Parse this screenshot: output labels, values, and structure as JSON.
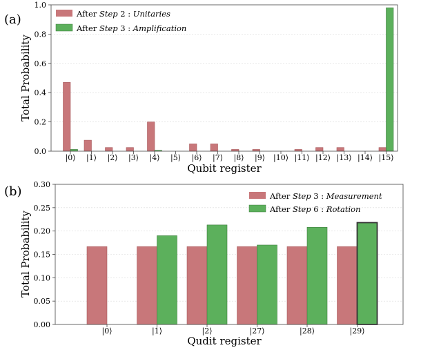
{
  "chart_data": [
    {
      "type": "bar",
      "panel_label": "(a)",
      "xlabel": "Qubit register",
      "ylabel": "Total Probability",
      "ylim": [
        0,
        1.0
      ],
      "yticks": [
        "0.0",
        "0.2",
        "0.4",
        "0.6",
        "0.8",
        "1.0"
      ],
      "ytick_values": [
        0,
        0.2,
        0.4,
        0.6,
        0.8,
        1.0
      ],
      "categories": [
        "|0⟩",
        "|1⟩",
        "|2⟩",
        "|3⟩",
        "|4⟩",
        "|5⟩",
        "|6⟩",
        "|7⟩",
        "|8⟩",
        "|9⟩",
        "|10⟩",
        "|11⟩",
        "|12⟩",
        "|13⟩",
        "|14⟩",
        "|15⟩"
      ],
      "legend_position": "top-left",
      "series": [
        {
          "legend_prefix": "After ",
          "legend_step": "Step",
          "legend_mid": " 2 : ",
          "legend_name": "Unitaries",
          "color": "#c8777a",
          "values": [
            0.47,
            0.075,
            0.025,
            0.025,
            0.2,
            0.0,
            0.05,
            0.05,
            0.012,
            0.012,
            0.0,
            0.012,
            0.025,
            0.025,
            0.0,
            0.025
          ]
        },
        {
          "legend_prefix": "After ",
          "legend_step": "Step",
          "legend_mid": " 3 : ",
          "legend_name": "Amplification",
          "color": "#5cb05c",
          "values": [
            0.012,
            0.0,
            0.0,
            0.0,
            0.006,
            0.0,
            0.0,
            0.0,
            0.0,
            0.0,
            0.0,
            0.0,
            0.0,
            0.0,
            0.0,
            0.98
          ]
        }
      ]
    },
    {
      "type": "bar",
      "panel_label": "(b)",
      "xlabel": "Qudit register",
      "ylabel": "Total Probability",
      "ylim": [
        0,
        0.3
      ],
      "yticks": [
        "0.00",
        "0.05",
        "0.10",
        "0.15",
        "0.20",
        "0.25",
        "0.30"
      ],
      "ytick_values": [
        0,
        0.05,
        0.1,
        0.15,
        0.2,
        0.25,
        0.3
      ],
      "categories": [
        "|0⟩",
        "|1⟩",
        "|2⟩",
        "|27⟩",
        "|28⟩",
        "|29⟩"
      ],
      "legend_position": "top-right",
      "series": [
        {
          "legend_prefix": "After ",
          "legend_step": "Step",
          "legend_mid": " 3 : ",
          "legend_name": "Measurement",
          "color": "#c8777a",
          "values": [
            0.1667,
            0.1667,
            0.1667,
            0.1667,
            0.1667,
            0.1667
          ]
        },
        {
          "legend_prefix": "After ",
          "legend_step": "Step",
          "legend_mid": " 6 : ",
          "legend_name": "Rotation",
          "color": "#5cb05c",
          "values": [
            0.0,
            0.19,
            0.213,
            0.17,
            0.208,
            0.218
          ]
        }
      ]
    }
  ]
}
